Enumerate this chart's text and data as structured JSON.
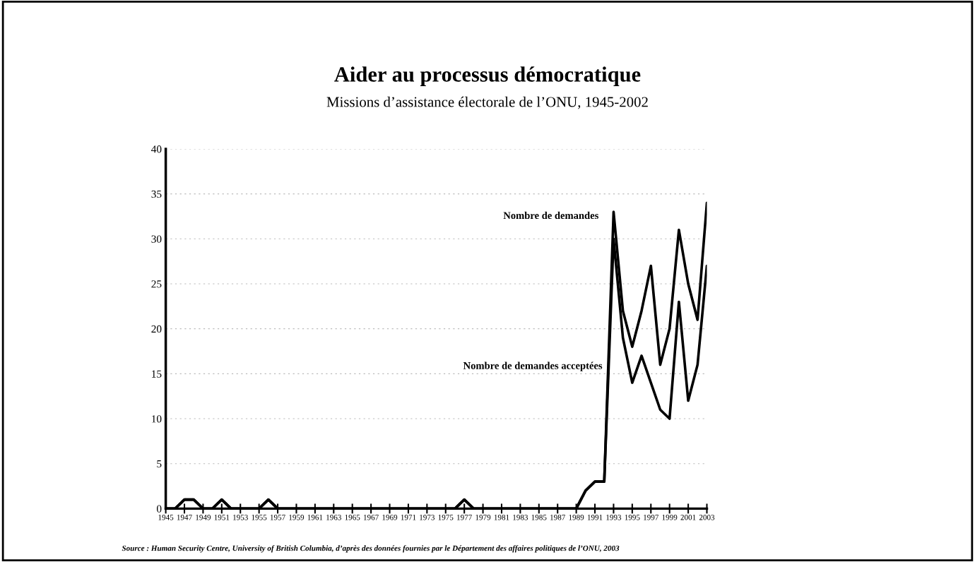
{
  "chart_data": {
    "type": "line",
    "title": "Aider au processus démocratique",
    "subtitle": "Missions d’assistance électorale de l’ONU, 1945-2002",
    "x": [
      1945,
      1946,
      1947,
      1948,
      1949,
      1950,
      1951,
      1952,
      1953,
      1954,
      1955,
      1956,
      1957,
      1958,
      1959,
      1960,
      1961,
      1962,
      1963,
      1964,
      1965,
      1966,
      1967,
      1968,
      1969,
      1970,
      1971,
      1972,
      1973,
      1974,
      1975,
      1976,
      1977,
      1978,
      1979,
      1980,
      1981,
      1982,
      1983,
      1984,
      1985,
      1986,
      1987,
      1988,
      1989,
      1990,
      1991,
      1992,
      1993,
      1994,
      1995,
      1996,
      1997,
      1998,
      1999,
      2000,
      2001,
      2002,
      2003
    ],
    "series": [
      {
        "name": "Nombre de demandes",
        "color": "#000000",
        "values": [
          0,
          0,
          1,
          1,
          0,
          0,
          1,
          0,
          0,
          0,
          0,
          1,
          0,
          0,
          0,
          0,
          0,
          0,
          0,
          0,
          0,
          0,
          0,
          0,
          0,
          0,
          0,
          0,
          0,
          0,
          0,
          0,
          1,
          0,
          0,
          0,
          0,
          0,
          0,
          0,
          0,
          0,
          0,
          0,
          0,
          2,
          3,
          3,
          33,
          22,
          18,
          22,
          27,
          16,
          20,
          31,
          25,
          21,
          34
        ]
      },
      {
        "name": "Nombre de demandes acceptées",
        "color": "#000000",
        "values": [
          0,
          0,
          1,
          1,
          0,
          0,
          1,
          0,
          0,
          0,
          0,
          1,
          0,
          0,
          0,
          0,
          0,
          0,
          0,
          0,
          0,
          0,
          0,
          0,
          0,
          0,
          0,
          0,
          0,
          0,
          0,
          0,
          1,
          0,
          0,
          0,
          0,
          0,
          0,
          0,
          0,
          0,
          0,
          0,
          0,
          2,
          3,
          3,
          30,
          19,
          14,
          17,
          14,
          11,
          10,
          23,
          12,
          16,
          27
        ]
      }
    ],
    "xlim": [
      1945,
      2003
    ],
    "xticks": [
      1945,
      1947,
      1949,
      1951,
      1953,
      1955,
      1957,
      1959,
      1961,
      1963,
      1965,
      1967,
      1969,
      1971,
      1973,
      1975,
      1977,
      1979,
      1981,
      1983,
      1985,
      1987,
      1989,
      1991,
      1993,
      1995,
      1997,
      1999,
      2001,
      2003
    ],
    "ylim": [
      0,
      40
    ],
    "yticks": [
      0,
      5,
      10,
      15,
      20,
      25,
      30,
      35,
      40
    ],
    "grid": "y",
    "legend": false,
    "marker": "none",
    "line_style": "solid",
    "annotations": [
      "Source : Human Security Centre, University of British Columbia, d’après des données fournies par le Département des affaires politiques de l’ONU, 2003"
    ]
  }
}
